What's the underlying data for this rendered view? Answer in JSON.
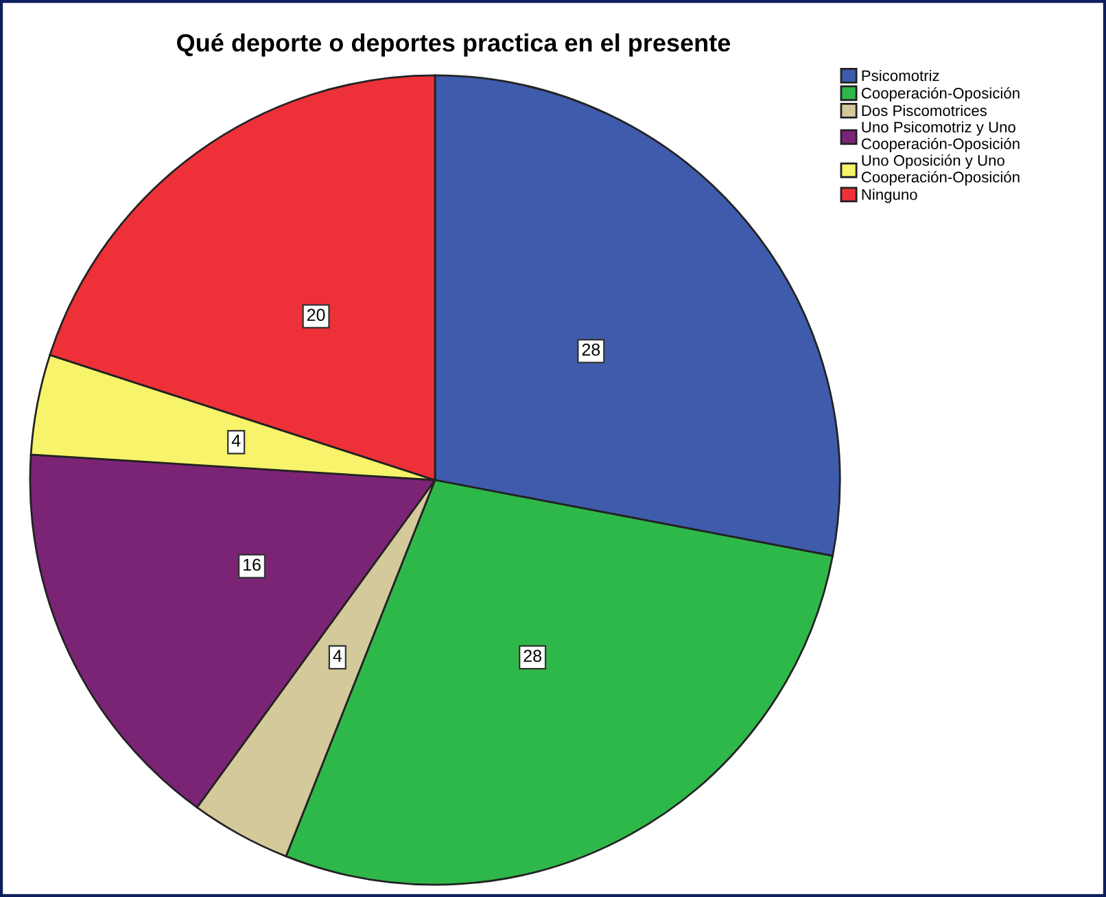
{
  "chart_data": {
    "type": "pie",
    "title": "Qué deporte o deportes practica en el presente",
    "categories": [
      "Psicomotriz",
      "Cooperación-Oposición",
      "Dos Piscomotrices",
      "Uno Psicomotriz y Uno\nCooperación-Oposición",
      "Uno Oposición y Uno\nCooperación-Oposición",
      "Ninguno"
    ],
    "values": [
      28,
      28,
      4,
      16,
      4,
      20
    ],
    "colors": [
      "#3f5bab",
      "#2fb84a",
      "#d4c99a",
      "#7b2476",
      "#f7f36a",
      "#ee3138"
    ],
    "data_labels": true,
    "legend": "top right"
  }
}
